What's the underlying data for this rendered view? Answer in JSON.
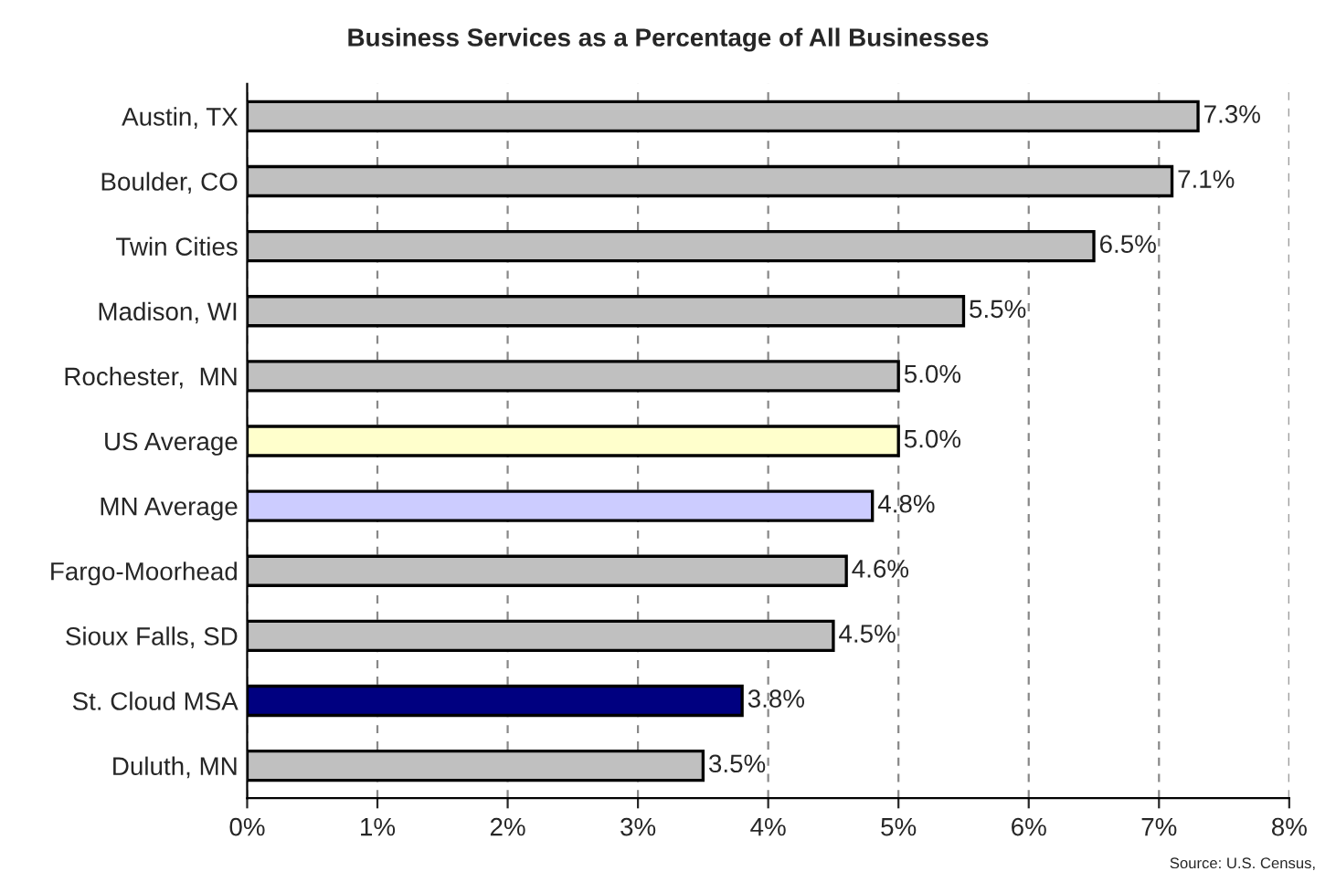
{
  "chart_data": {
    "type": "bar",
    "orientation": "horizontal",
    "title": "Business Services as a Percentage of All Businesses",
    "categories": [
      "Austin, TX",
      "Boulder, CO",
      "Twin Cities",
      "Madison, WI",
      "Rochester,  MN",
      "US Average",
      "MN Average",
      "Fargo-Moorhead",
      "Sioux Falls, SD",
      "St. Cloud MSA",
      "Duluth, MN"
    ],
    "values": [
      7.3,
      7.1,
      6.5,
      5.5,
      5.0,
      5.0,
      4.8,
      4.6,
      4.5,
      3.8,
      3.5
    ],
    "colors": [
      "#c0c0c0",
      "#c0c0c0",
      "#c0c0c0",
      "#c0c0c0",
      "#c0c0c0",
      "#ffffcc",
      "#ccccff",
      "#c0c0c0",
      "#c0c0c0",
      "#000080",
      "#c0c0c0"
    ],
    "value_labels": [
      "7.3%",
      "7.1%",
      "6.5%",
      "5.5%",
      "5.0%",
      "5.0%",
      "4.8%",
      "4.6%",
      "4.5%",
      "3.8%",
      "3.5%"
    ],
    "xlim": [
      0,
      8
    ],
    "xticks": [
      {
        "value": 0,
        "label": "0%"
      },
      {
        "value": 1,
        "label": "1%"
      },
      {
        "value": 2,
        "label": "2%"
      },
      {
        "value": 3,
        "label": "3%"
      },
      {
        "value": 4,
        "label": "4%"
      },
      {
        "value": 5,
        "label": "5%"
      },
      {
        "value": 6,
        "label": "6%"
      },
      {
        "value": 7,
        "label": "7%"
      },
      {
        "value": 8,
        "label": "8%"
      }
    ],
    "grid": "x",
    "legend": false,
    "annotations": [
      "Source: U.S. Census,"
    ]
  }
}
